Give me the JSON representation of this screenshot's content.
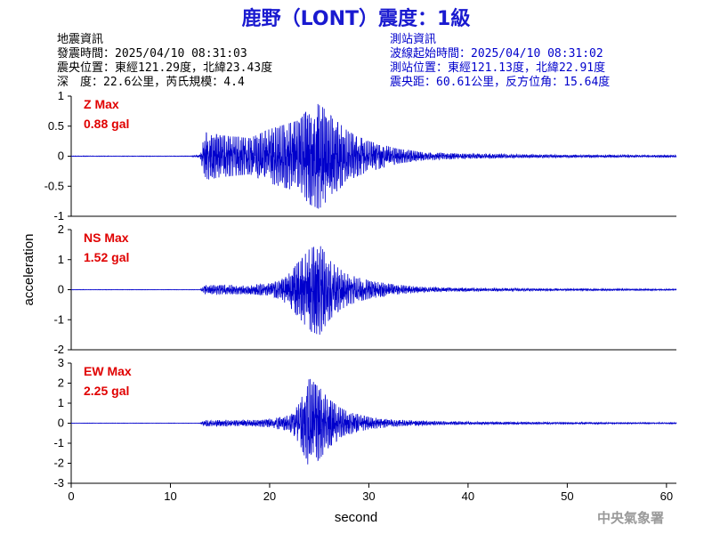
{
  "title": "鹿野（LONT）震度：1級",
  "quake_info": {
    "heading": "地震資訊",
    "time": "發震時間：2025/04/10 08:31:03",
    "location": "震央位置：東經121.29度，北緯23.43度",
    "depth_mag": "深　度：22.6公里，芮氏規模：4.4"
  },
  "station_info": {
    "heading": "測站資訊",
    "wave_start": "波線起始時間：2025/04/10 08:31:02",
    "location": "測站位置：東經121.13度，北緯22.91度",
    "distance": "震央距：60.61公里，反方位角：15.64度"
  },
  "y_axis_title": "acceleration",
  "x_axis_title": "second",
  "footer": "中央氣象署",
  "colors": {
    "trace": "#0000cc",
    "label": "#e00000",
    "title": "#1a1ad0",
    "station": "#0000cc"
  },
  "chart_data": [
    {
      "type": "line",
      "channel": "Z",
      "label_name": "Z Max",
      "label_value": "0.88 gal",
      "max_abs": 0.88,
      "xlim": [
        0,
        61
      ],
      "ylim": [
        -1,
        1
      ],
      "yticks": [
        -1,
        -0.5,
        0,
        0.5,
        1
      ],
      "ytick_labels": [
        "-1",
        "-0.5",
        "0",
        "0.5",
        "1"
      ],
      "envelope": {
        "t": [
          0,
          12,
          13,
          13.5,
          15,
          18,
          20,
          22,
          23,
          24,
          25,
          26,
          27,
          28,
          30,
          33,
          36,
          40,
          45,
          50,
          55,
          61
        ],
        "a": [
          0.004,
          0.004,
          0.02,
          0.4,
          0.35,
          0.3,
          0.45,
          0.55,
          0.6,
          0.8,
          0.88,
          0.7,
          0.55,
          0.4,
          0.25,
          0.12,
          0.06,
          0.04,
          0.03,
          0.02,
          0.02,
          0.015
        ]
      }
    },
    {
      "type": "line",
      "channel": "NS",
      "label_name": "NS Max",
      "label_value": "1.52 gal",
      "max_abs": 1.52,
      "xlim": [
        0,
        61
      ],
      "ylim": [
        -2,
        2
      ],
      "yticks": [
        -2,
        -1,
        0,
        1,
        2
      ],
      "ytick_labels": [
        "-2",
        "-1",
        "0",
        "1",
        "2"
      ],
      "envelope": {
        "t": [
          0,
          13,
          13.5,
          15,
          18,
          20,
          21,
          22,
          23,
          24,
          25,
          26,
          27,
          28,
          30,
          33,
          36,
          40,
          45,
          50,
          55,
          61
        ],
        "a": [
          0.006,
          0.006,
          0.15,
          0.15,
          0.15,
          0.2,
          0.3,
          0.55,
          0.95,
          1.35,
          1.52,
          1.0,
          0.7,
          0.5,
          0.3,
          0.15,
          0.08,
          0.05,
          0.04,
          0.03,
          0.025,
          0.02
        ]
      }
    },
    {
      "type": "line",
      "channel": "EW",
      "label_name": "EW Max",
      "label_value": "2.25 gal",
      "max_abs": 2.25,
      "xlim": [
        0,
        61
      ],
      "ylim": [
        -3,
        3
      ],
      "yticks": [
        -3,
        -2,
        -1,
        0,
        1,
        2,
        3
      ],
      "ytick_labels": [
        "-3",
        "-2",
        "-1",
        "0",
        "1",
        "2",
        "3"
      ],
      "xticks": [
        0,
        10,
        20,
        30,
        40,
        50,
        60
      ],
      "xtick_labels": [
        "0",
        "10",
        "20",
        "30",
        "40",
        "50",
        "60"
      ],
      "envelope": {
        "t": [
          0,
          13,
          13.5,
          15,
          18,
          20,
          22,
          23,
          24,
          25,
          26,
          27,
          28,
          30,
          33,
          36,
          40,
          45,
          50,
          55,
          61
        ],
        "a": [
          0.008,
          0.008,
          0.15,
          0.15,
          0.15,
          0.2,
          0.4,
          1.0,
          2.25,
          1.8,
          1.2,
          0.8,
          0.55,
          0.3,
          0.15,
          0.1,
          0.07,
          0.05,
          0.04,
          0.03,
          0.025
        ]
      }
    }
  ]
}
